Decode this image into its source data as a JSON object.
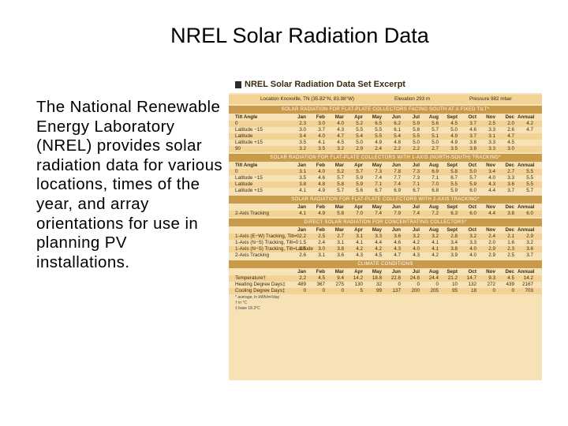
{
  "slide": {
    "title": "NREL Solar Radiation Data",
    "body": "The National Renewable Energy Laboratory (NREL) provides solar radiation data for various locations, times of the year, and array orientations for use in planning PV installations."
  },
  "excerpt": {
    "title": "NREL Solar Radiation Data Set Excerpt",
    "location": "Location  Knoxville, TN (35.82°N, 83.98°W)",
    "elevation": "Elevation  293 m",
    "pressure": "Pressure  982 mbar",
    "columns": [
      "Jan",
      "Feb",
      "Mar",
      "Apr",
      "May",
      "Jun",
      "Jul",
      "Aug",
      "Sept",
      "Oct",
      "Nov",
      "Dec",
      "Annual"
    ],
    "climate_columns": [
      "Jan",
      "Feb",
      "Mar",
      "Apr",
      "May",
      "Jun",
      "Jul",
      "Aug",
      "Sept",
      "Oct",
      "Nov",
      "Dec",
      "Annual"
    ],
    "sections": [
      {
        "title": "SOLAR RADIATION FOR FLAT-PLATE COLLECTORS FACING SOUTH AT A FIXED TILT*",
        "first_col": "Tilt Angle",
        "rows": [
          {
            "label": "0",
            "values": [
              "2.3",
              "3.0",
              "4.0",
              "5.2",
              "6.5",
              "6.2",
              "5.9",
              "5.6",
              "4.5",
              "3.7",
              "2.5",
              "2.0",
              "4.2"
            ]
          },
          {
            "label": "Latitude −15",
            "values": [
              "3.0",
              "3.7",
              "4.3",
              "5.5",
              "5.5",
              "6.1",
              "5.8",
              "5.7",
              "5.0",
              "4.6",
              "3.3",
              "2.6",
              "4.7"
            ]
          },
          {
            "label": "Latitude",
            "values": [
              "3.4",
              "4.0",
              "4.7",
              "5.4",
              "5.5",
              "5.4",
              "5.5",
              "5.1",
              "4.9",
              "3.7",
              "3.1",
              "4.7",
              ""
            ]
          },
          {
            "label": "Latitude +15",
            "values": [
              "3.5",
              "4.1",
              "4.5",
              "5.0",
              "4.9",
              "4.8",
              "5.0",
              "5.0",
              "4.9",
              "3.8",
              "3.3",
              "4.5",
              ""
            ]
          },
          {
            "label": "90",
            "values": [
              "3.2",
              "3.5",
              "3.2",
              "2.9",
              "2.4",
              "2.2",
              "2.2",
              "2.7",
              "3.5",
              "3.8",
              "3.3",
              "3.0",
              ""
            ]
          }
        ]
      },
      {
        "title": "SOLAR RADIATION FOR FLAT-PLATE COLLECTORS WITH 1-AXIS (NORTH-SOUTH) TRACKING*",
        "first_col": "Tilt Angle",
        "rows": [
          {
            "label": "0",
            "values": [
              "3.1",
              "4.0",
              "5.2",
              "5.7",
              "7.3",
              "7.8",
              "7.3",
              "6.9",
              "5.8",
              "5.0",
              "3.4",
              "2.7",
              "5.5"
            ]
          },
          {
            "label": "Latitude −15",
            "values": [
              "3.5",
              "4.6",
              "5.7",
              "5.9",
              "7.4",
              "7.7",
              "7.3",
              "7.1",
              "6.7",
              "5.7",
              "4.0",
              "3.3",
              "5.5"
            ]
          },
          {
            "label": "Latitude",
            "values": [
              "3.8",
              "4.8",
              "5.8",
              "5.9",
              "7.1",
              "7.4",
              "7.1",
              "7.0",
              "5.5",
              "5.9",
              "4.3",
              "3.6",
              "5.5"
            ]
          },
          {
            "label": "Latitude +15",
            "values": [
              "4.1",
              "4.9",
              "5.7",
              "5.6",
              "6.7",
              "6.9",
              "6.7",
              "6.8",
              "5.9",
              "6.0",
              "4.4",
              "3.7",
              "5.7"
            ]
          }
        ]
      },
      {
        "title": "SOLAR RADIATION FOR FLAT-PLATE COLLECTORS WITH 2-AXIS TRACKING*",
        "first_col": "",
        "rows": [
          {
            "label": "2-Axis Tracking",
            "values": [
              "4.1",
              "4.9",
              "5.8",
              "7.0",
              "7.4",
              "7.9",
              "7.4",
              "7.2",
              "6.3",
              "6.0",
              "4.4",
              "3.8",
              "6.0"
            ]
          }
        ]
      },
      {
        "title": "DIRECT SOLAR RADIATION FOR CONCENTRATING COLLECTORS*",
        "first_col": "",
        "rows": [
          {
            "label": "1-Axis (E−W) Tracking, Tilt=0",
            "values": [
              "2.2",
              "2.5",
              "2.7",
              "3.1",
              "3.3",
              "3.6",
              "3.2",
              "3.2",
              "2.8",
              "3.2",
              "2.4",
              "2.1",
              "2.9"
            ]
          },
          {
            "label": "1-Axis (N−S) Tracking, Tilt=0",
            "values": [
              "1.5",
              "2.4",
              "3.1",
              "4.1",
              "4.4",
              "4.6",
              "4.2",
              "4.1",
              "3.4",
              "3.3",
              "2.0",
              "1.6",
              "3.2"
            ]
          },
          {
            "label": "1-Axis (N−S) Tracking, Tilt=Latitude",
            "values": [
              "2.5",
              "3.0",
              "3.8",
              "4.2",
              "4.2",
              "4.3",
              "4.0",
              "4.1",
              "3.8",
              "4.0",
              "2.9",
              "2.3",
              "3.6"
            ]
          },
          {
            "label": "2-Axis Tracking",
            "values": [
              "2.6",
              "3.1",
              "3.6",
              "4.3",
              "4.5",
              "4.7",
              "4.3",
              "4.2",
              "3.9",
              "4.0",
              "2.9",
              "2.5",
              "3.7"
            ]
          }
        ]
      },
      {
        "title": "CLIMATE CONDITIONS",
        "first_col": "",
        "rows": [
          {
            "label": "Temperature†",
            "values": [
              "2.2",
              "4.5",
              "9.4",
              "14.2",
              "18.8",
              "22.8",
              "24.8",
              "24.4",
              "21.2",
              "14.7",
              "9.3",
              "4.5",
              "14.2"
            ]
          },
          {
            "label": "Heating Degree Days‡",
            "values": [
              "489",
              "367",
              "275",
              "130",
              "32",
              "0",
              "0",
              "0",
              "10",
              "132",
              "272",
              "439",
              "2167"
            ]
          },
          {
            "label": "Cooling Degree Days‡",
            "values": [
              "0",
              "0",
              "0",
              "5",
              "99",
              "137",
              "200",
              "205",
              "95",
              "18",
              "0",
              "0",
              "703"
            ]
          }
        ]
      }
    ],
    "footnotes": [
      "* average, in kWh/m²/day",
      "† in °C",
      "‡ base 18.3°C"
    ]
  }
}
